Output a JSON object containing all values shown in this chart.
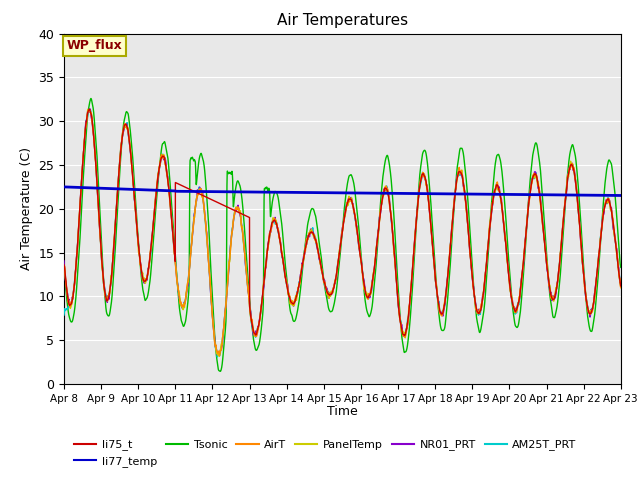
{
  "title": "Air Temperatures",
  "xlabel": "Time",
  "ylabel": "Air Temperature (C)",
  "ylim": [
    0,
    40
  ],
  "background_color": "#e8e8e8",
  "figure_color": "#ffffff",
  "grid_color": "#ffffff",
  "legend_box_color": "#ffffcc",
  "legend_box_edge": "#aaaa00",
  "wp_flux_text_color": "#8b0000",
  "series_colors": {
    "li75_t": "#cc0000",
    "li77_temp": "#0000cc",
    "Tsonic": "#00bb00",
    "AirT": "#ff8800",
    "PanelTemp": "#cccc00",
    "NR01_PRT": "#8800cc",
    "AM25T_PRT": "#00cccc"
  },
  "x_tick_labels": [
    "Apr 8",
    "Apr 9",
    "Apr 10",
    "Apr 11",
    "Apr 12",
    "Apr 13",
    "Apr 14",
    "Apr 15",
    "Apr 16",
    "Apr 17",
    "Apr 18",
    "Apr 19",
    "Apr 20",
    "Apr 21",
    "Apr 22",
    "Apr 23"
  ],
  "x_tick_positions": [
    0,
    1,
    2,
    3,
    4,
    5,
    6,
    7,
    8,
    9,
    10,
    11,
    12,
    13,
    14,
    15
  ]
}
